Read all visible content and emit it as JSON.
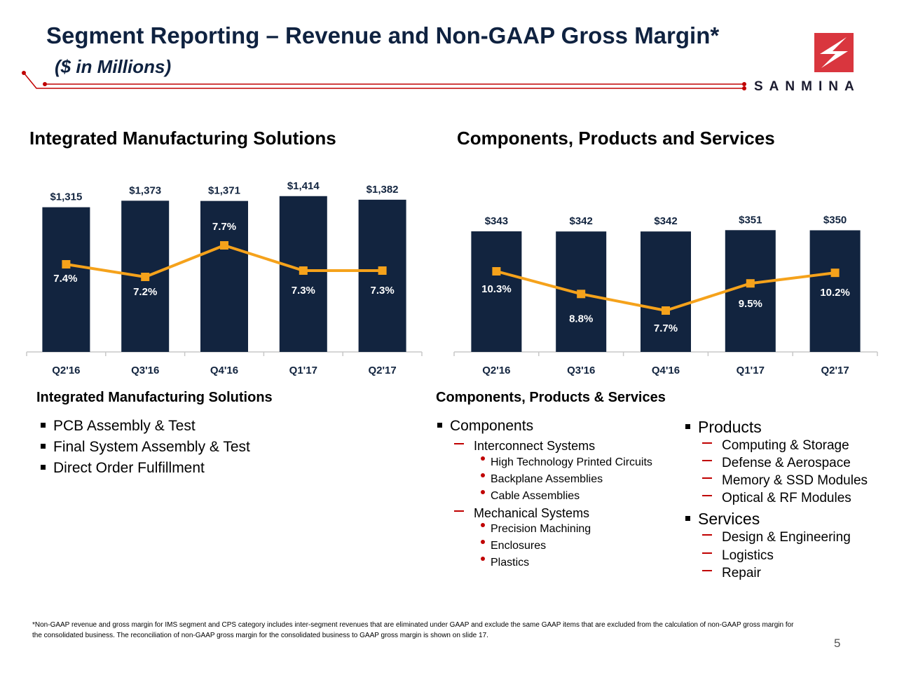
{
  "header": {
    "title": "Segment Reporting – Revenue and Non-GAAP Gross Margin*",
    "subtitle": "($ in Millions)"
  },
  "logo": {
    "text": "SANMINA",
    "icon": "sanmina-s-logo-icon"
  },
  "colors": {
    "bar": "#12243f",
    "line": "#f5a21b",
    "marker": "#f5a21b",
    "accent": "#c00000",
    "title": "#0f2240"
  },
  "chart_data": [
    {
      "type": "bar",
      "title": "Integrated Manufacturing Solutions",
      "categories": [
        "Q2'16",
        "Q3'16",
        "Q4'16",
        "Q1'17",
        "Q2'17"
      ],
      "series": [
        {
          "name": "Revenue",
          "type": "bar",
          "values": [
            1315,
            1373,
            1371,
            1414,
            1382
          ],
          "labels": [
            "$1,315",
            "$1,373",
            "$1,371",
            "$1,414",
            "$1,382"
          ]
        },
        {
          "name": "Non-GAAP Gross Margin",
          "type": "line",
          "values": [
            7.4,
            7.2,
            7.7,
            7.3,
            7.3
          ],
          "labels": [
            "7.4%",
            "7.2%",
            "7.7%",
            "7.3%",
            "7.3%"
          ]
        }
      ],
      "xlabel": "",
      "ylabel": "",
      "grid": false
    },
    {
      "type": "bar",
      "title": "Components, Products and Services",
      "categories": [
        "Q2'16",
        "Q3'16",
        "Q4'16",
        "Q1'17",
        "Q2'17"
      ],
      "series": [
        {
          "name": "Revenue",
          "type": "bar",
          "values": [
            343,
            342,
            342,
            351,
            350
          ],
          "labels": [
            "$343",
            "$342",
            "$342",
            "$351",
            "$350"
          ]
        },
        {
          "name": "Non-GAAP Gross Margin",
          "type": "line",
          "values": [
            10.3,
            8.8,
            7.7,
            9.5,
            10.2
          ],
          "labels": [
            "10.3%",
            "8.8%",
            "7.7%",
            "9.5%",
            "10.2%"
          ]
        }
      ],
      "xlabel": "",
      "ylabel": "",
      "grid": false
    }
  ],
  "ims": {
    "title": "Integrated Manufacturing Solutions",
    "items": [
      "PCB Assembly & Test",
      "Final System Assembly & Test",
      "Direct Order Fulfillment"
    ]
  },
  "cps": {
    "title": "Components, Products & Services",
    "components": {
      "label": "Components",
      "interconnect": {
        "label": "Interconnect Systems",
        "items": [
          "High Technology Printed Circuits",
          "Backplane Assemblies",
          "Cable Assemblies"
        ]
      },
      "mechanical": {
        "label": "Mechanical Systems",
        "items": [
          "Precision Machining",
          "Enclosures",
          "Plastics"
        ]
      }
    },
    "products": {
      "label": "Products",
      "items": [
        "Computing & Storage",
        "Defense & Aerospace",
        "Memory & SSD Modules",
        "Optical & RF Modules"
      ]
    },
    "services": {
      "label": "Services",
      "items": [
        "Design & Engineering",
        "Logistics",
        "Repair"
      ]
    }
  },
  "footnote": "*Non-GAAP revenue and gross margin for IMS segment and CPS category includes inter-segment revenues that are eliminated under GAAP and exclude the same GAAP items that are excluded from the calculation of non-GAAP gross margin for the consolidated business. The reconciliation of non-GAAP gross margin for the consolidated business to GAAP gross margin is shown on slide 17.",
  "page_number": "5"
}
